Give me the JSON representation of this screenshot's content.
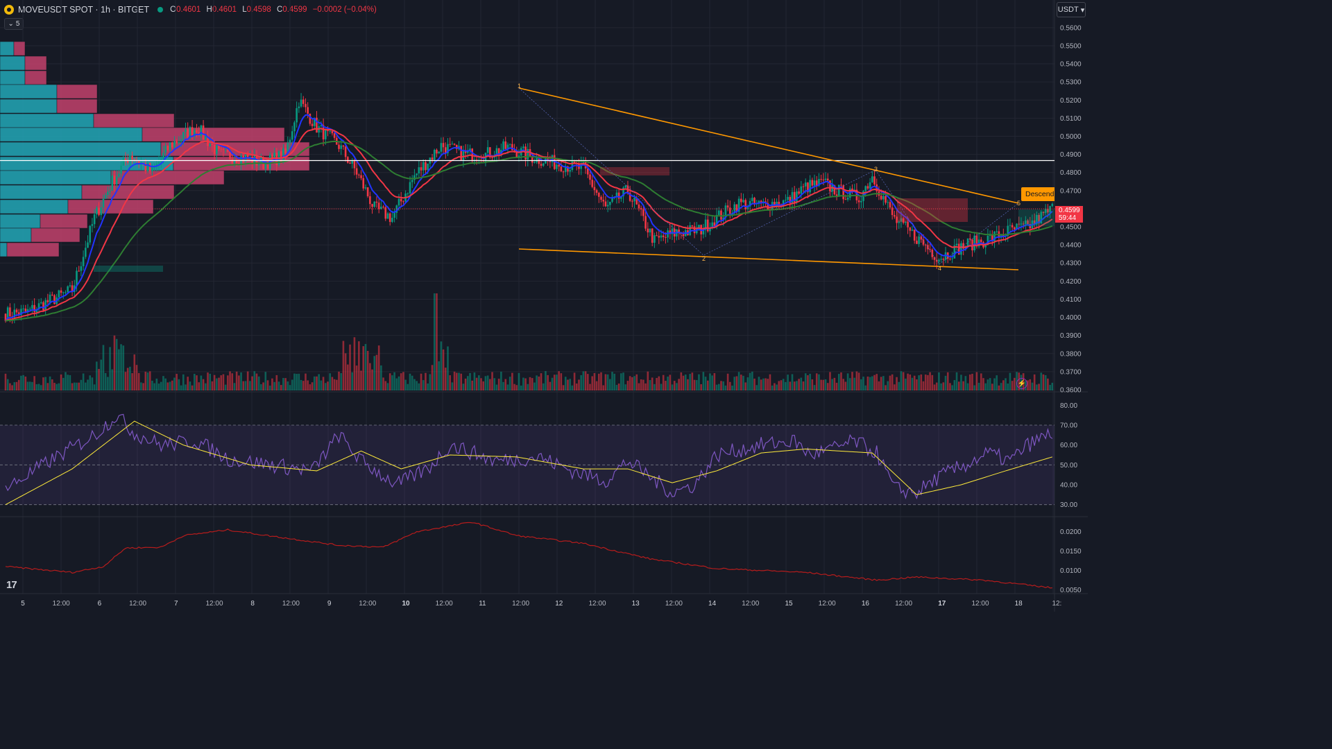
{
  "header": {
    "symbol": "MOVEUSDT SPOT · 1h · BITGET",
    "o_label": "O",
    "o_value": "0.4601",
    "h_label": "H",
    "h_value": "0.4601",
    "l_label": "L",
    "l_value": "0.4598",
    "c_label": "C",
    "c_value": "0.4599",
    "change": "−0.0002 (−0.04%)",
    "collapse_count": "5"
  },
  "currency": "USDT",
  "last_price": "0.4599",
  "countdown": "59:44",
  "pattern_label": "Descending",
  "wave_labels": [
    "1",
    "2",
    "3",
    "4",
    "5"
  ],
  "logo_text": "17",
  "colors": {
    "up": "#089981",
    "down": "#f23645",
    "bg": "#161a25",
    "ema_fast": "#2134ff",
    "ema_mid": "#f23645",
    "ema_slow": "#2e7d32",
    "trendline": "#ff9800",
    "rsi": "#7e57c2",
    "rsi_ma": "#ffeb3b"
  },
  "chart_data": {
    "type": "candlestick",
    "title": "",
    "price_axis_ticks": [
      "0.5600",
      "0.5500",
      "0.5400",
      "0.5300",
      "0.5200",
      "0.5100",
      "0.5000",
      "0.4900",
      "0.4800",
      "0.4700",
      "0.4600",
      "0.4500",
      "0.4400",
      "0.4300",
      "0.4200",
      "0.4100",
      "0.4000",
      "0.3900",
      "0.3800",
      "0.3700",
      "0.3600"
    ],
    "price_range": [
      0.36,
      0.563
    ],
    "horizontal_level": 0.4866,
    "last_price_level": 0.4599,
    "time_axis_labels": [
      "5",
      "12:00",
      "6",
      "12:00",
      "7",
      "12:00",
      "8",
      "12:00",
      "9",
      "12:00",
      "10",
      "12:00",
      "11",
      "12:00",
      "12",
      "12:00",
      "13",
      "12:00",
      "14",
      "12:00",
      "15",
      "12:00",
      "16",
      "12:00",
      "17",
      "12:00",
      "18",
      "12:"
    ],
    "close_anchors": [
      [
        0,
        0.402
      ],
      [
        10,
        0.403
      ],
      [
        18,
        0.408
      ],
      [
        30,
        0.415
      ],
      [
        40,
        0.455
      ],
      [
        48,
        0.475
      ],
      [
        56,
        0.49
      ],
      [
        66,
        0.48
      ],
      [
        74,
        0.495
      ],
      [
        86,
        0.505
      ],
      [
        96,
        0.49
      ],
      [
        108,
        0.488
      ],
      [
        116,
        0.485
      ],
      [
        126,
        0.49
      ],
      [
        132,
        0.52
      ],
      [
        140,
        0.505
      ],
      [
        150,
        0.495
      ],
      [
        158,
        0.48
      ],
      [
        166,
        0.46
      ],
      [
        174,
        0.455
      ],
      [
        184,
        0.478
      ],
      [
        196,
        0.495
      ],
      [
        206,
        0.49
      ],
      [
        216,
        0.49
      ],
      [
        226,
        0.494
      ],
      [
        238,
        0.488
      ],
      [
        248,
        0.485
      ],
      [
        260,
        0.482
      ],
      [
        270,
        0.46
      ],
      [
        280,
        0.47
      ],
      [
        292,
        0.442
      ],
      [
        302,
        0.447
      ],
      [
        312,
        0.448
      ],
      [
        320,
        0.455
      ],
      [
        330,
        0.463
      ],
      [
        340,
        0.462
      ],
      [
        352,
        0.464
      ],
      [
        360,
        0.472
      ],
      [
        368,
        0.474
      ],
      [
        374,
        0.47
      ],
      [
        384,
        0.466
      ],
      [
        390,
        0.478
      ],
      [
        400,
        0.454
      ],
      [
        410,
        0.444
      ],
      [
        420,
        0.433
      ],
      [
        432,
        0.44
      ],
      [
        442,
        0.443
      ],
      [
        452,
        0.448
      ],
      [
        460,
        0.45
      ],
      [
        471,
        0.46
      ]
    ],
    "volume_range": [
      0,
      1
    ],
    "rsi": {
      "ticks": [
        "80.00",
        "70.00",
        "60.00",
        "50.00",
        "40.00",
        "30.00"
      ],
      "range": [
        25,
        85
      ],
      "band": [
        30,
        70
      ],
      "mid": 50,
      "anchors": [
        [
          0,
          38
        ],
        [
          20,
          52
        ],
        [
          40,
          65
        ],
        [
          50,
          75
        ],
        [
          58,
          66
        ],
        [
          70,
          60
        ],
        [
          86,
          62
        ],
        [
          100,
          53
        ],
        [
          120,
          50
        ],
        [
          138,
          47
        ],
        [
          150,
          65
        ],
        [
          160,
          52
        ],
        [
          176,
          40
        ],
        [
          190,
          48
        ],
        [
          200,
          60
        ],
        [
          208,
          57
        ],
        [
          220,
          52
        ],
        [
          240,
          54
        ],
        [
          255,
          47
        ],
        [
          270,
          42
        ],
        [
          280,
          52
        ],
        [
          290,
          44
        ],
        [
          300,
          36
        ],
        [
          310,
          40
        ],
        [
          320,
          55
        ],
        [
          340,
          60
        ],
        [
          355,
          62
        ],
        [
          362,
          55
        ],
        [
          372,
          58
        ],
        [
          382,
          62
        ],
        [
          392,
          56
        ],
        [
          400,
          38
        ],
        [
          410,
          36
        ],
        [
          420,
          44
        ],
        [
          432,
          50
        ],
        [
          442,
          56
        ],
        [
          452,
          52
        ],
        [
          460,
          60
        ],
        [
          471,
          66
        ]
      ],
      "ma_anchors": [
        [
          0,
          30
        ],
        [
          30,
          48
        ],
        [
          58,
          72
        ],
        [
          80,
          60
        ],
        [
          110,
          50
        ],
        [
          140,
          47
        ],
        [
          160,
          57
        ],
        [
          178,
          48
        ],
        [
          200,
          55
        ],
        [
          230,
          54
        ],
        [
          260,
          48
        ],
        [
          280,
          48
        ],
        [
          300,
          41
        ],
        [
          320,
          47
        ],
        [
          340,
          56
        ],
        [
          360,
          58
        ],
        [
          390,
          56
        ],
        [
          410,
          35
        ],
        [
          430,
          40
        ],
        [
          450,
          47
        ],
        [
          471,
          54
        ]
      ]
    },
    "lower": {
      "ticks": [
        "0.0200",
        "0.0150",
        "0.0100",
        "0.0050"
      ],
      "range": [
        0.004,
        0.023
      ],
      "anchors": [
        [
          0,
          0.011
        ],
        [
          30,
          0.0095
        ],
        [
          44,
          0.011
        ],
        [
          54,
          0.0158
        ],
        [
          70,
          0.016
        ],
        [
          80,
          0.019
        ],
        [
          100,
          0.0205
        ],
        [
          118,
          0.019
        ],
        [
          150,
          0.0165
        ],
        [
          170,
          0.016
        ],
        [
          185,
          0.02
        ],
        [
          210,
          0.0225
        ],
        [
          230,
          0.019
        ],
        [
          260,
          0.017
        ],
        [
          290,
          0.013
        ],
        [
          320,
          0.0105
        ],
        [
          360,
          0.0095
        ],
        [
          392,
          0.0075
        ],
        [
          410,
          0.0083
        ],
        [
          440,
          0.0075
        ],
        [
          471,
          0.0055
        ]
      ]
    }
  }
}
